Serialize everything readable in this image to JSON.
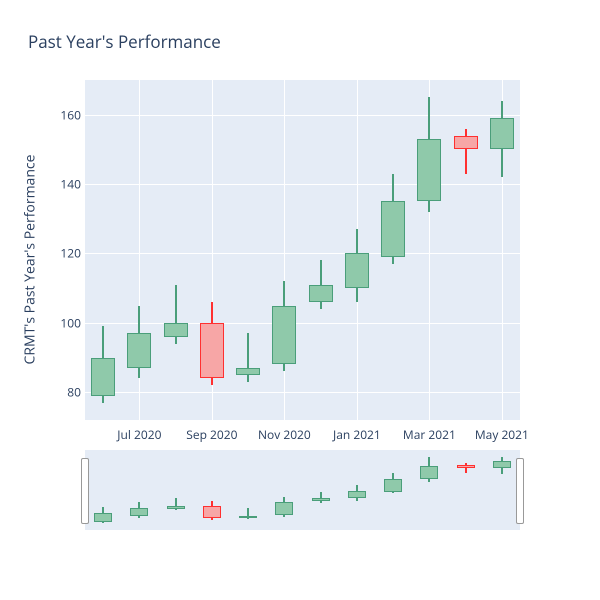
{
  "title": {
    "text": "Past Year's Performance",
    "fontsize": 17,
    "color": "#2a3f5f"
  },
  "y_label": "CRMT's Past Year's Performance",
  "chart": {
    "type": "candlestick",
    "background_color": "#e5ecf6",
    "grid_color": "#ffffff",
    "up_color": "#4a9e7a",
    "up_fill": "#8fc9aa",
    "down_color": "#ff3030",
    "down_fill": "#f7a6a6",
    "ylim": [
      72,
      170
    ],
    "yticks": [
      80,
      100,
      120,
      140,
      160
    ],
    "xticks": [
      "Jul 2020",
      "Sep 2020",
      "Nov 2020",
      "Jan 2021",
      "Mar 2021",
      "May 2021"
    ],
    "xtick_positions": [
      1,
      3,
      5,
      7,
      9,
      11
    ],
    "candle_width": 24,
    "data": [
      {
        "date": "Jun 2020",
        "open": 79,
        "close": 90,
        "low": 77,
        "high": 99,
        "dir": "up"
      },
      {
        "date": "Jul 2020",
        "open": 87,
        "close": 97,
        "low": 84,
        "high": 105,
        "dir": "up"
      },
      {
        "date": "Aug 2020",
        "open": 96,
        "close": 100,
        "low": 94,
        "high": 111,
        "dir": "up"
      },
      {
        "date": "Sep 2020",
        "open": 100,
        "close": 84,
        "low": 82,
        "high": 106,
        "dir": "down"
      },
      {
        "date": "Oct 2020",
        "open": 85,
        "close": 87,
        "low": 83,
        "high": 97,
        "dir": "up"
      },
      {
        "date": "Nov 2020",
        "open": 88,
        "close": 105,
        "low": 86,
        "high": 112,
        "dir": "up"
      },
      {
        "date": "Dec 2020",
        "open": 106,
        "close": 111,
        "low": 104,
        "high": 118,
        "dir": "up"
      },
      {
        "date": "Jan 2021",
        "open": 110,
        "close": 120,
        "low": 106,
        "high": 127,
        "dir": "up"
      },
      {
        "date": "Feb 2021",
        "open": 119,
        "close": 135,
        "low": 117,
        "high": 143,
        "dir": "up"
      },
      {
        "date": "Mar 2021",
        "open": 135,
        "close": 153,
        "low": 132,
        "high": 165,
        "dir": "up"
      },
      {
        "date": "Apr 2021",
        "open": 154,
        "close": 150,
        "low": 143,
        "high": 156,
        "dir": "down"
      },
      {
        "date": "May 2021",
        "open": 150,
        "close": 159,
        "low": 142,
        "high": 164,
        "dir": "up"
      }
    ]
  }
}
